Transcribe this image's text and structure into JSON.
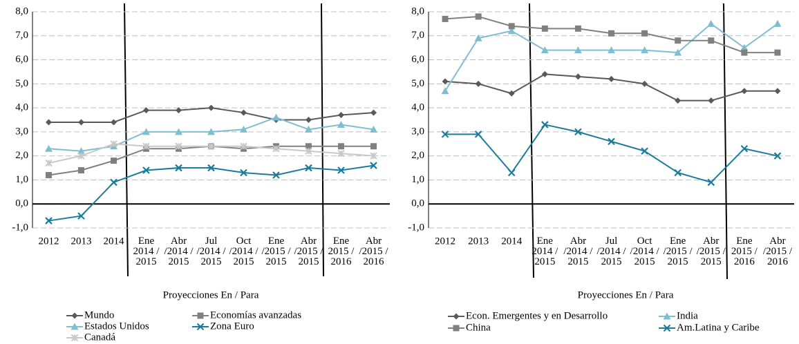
{
  "chart_data": [
    {
      "type": "line",
      "xlabel": "Proyecciones En / Para",
      "categories": [
        "2012",
        "2013",
        "2014",
        "Ene\n2014 /\n2015",
        "Abr\n/2014 /\n2015",
        "Jul\n/2014 /\n2015",
        "Oct\n/2014 /\n2015",
        "Ene\n/2015 /\n2015",
        "Abr\n/2015 /\n2015",
        "Ene\n2015 /\n2016",
        "Abr\n/2015 /\n2016"
      ],
      "ylim": [
        -1,
        8
      ],
      "yticks": [
        {
          "value": -1,
          "label": "-1,0"
        },
        {
          "value": 0,
          "label": "0,0"
        },
        {
          "value": 1,
          "label": "1,0"
        },
        {
          "value": 2,
          "label": "2,0"
        },
        {
          "value": 3,
          "label": "3,0"
        },
        {
          "value": 4,
          "label": "4,0"
        },
        {
          "value": 5,
          "label": "5,0"
        },
        {
          "value": 6,
          "label": "6,0"
        },
        {
          "value": 7,
          "label": "7,0"
        },
        {
          "value": 8,
          "label": "8,0"
        }
      ],
      "grid": true,
      "series": [
        {
          "name": "Mundo",
          "color": "#595959",
          "marker": "diamond",
          "values": [
            3.4,
            3.4,
            3.4,
            3.9,
            3.9,
            4.0,
            3.8,
            3.5,
            3.5,
            3.7,
            3.8
          ]
        },
        {
          "name": "Economías avanzadas",
          "color": "#808080",
          "marker": "square",
          "values": [
            1.2,
            1.4,
            1.8,
            2.3,
            2.3,
            2.4,
            2.3,
            2.4,
            2.4,
            2.4,
            2.4
          ]
        },
        {
          "name": "Estados Unidos",
          "color": "#7fbdd2",
          "marker": "triangle",
          "values": [
            2.3,
            2.2,
            2.4,
            3.0,
            3.0,
            3.0,
            3.1,
            3.6,
            3.1,
            3.3,
            3.1
          ]
        },
        {
          "name": "Zona Euro",
          "color": "#1a7c9c",
          "marker": "x",
          "values": [
            -0.7,
            -0.5,
            0.9,
            1.4,
            1.5,
            1.5,
            1.3,
            1.2,
            1.5,
            1.4,
            1.6
          ]
        },
        {
          "name": "Canadá",
          "color": "#c8c8c8",
          "marker": "star",
          "values": [
            1.7,
            2.0,
            2.5,
            2.4,
            2.4,
            2.4,
            2.4,
            2.3,
            2.2,
            2.1,
            2.0
          ]
        }
      ]
    },
    {
      "type": "line",
      "xlabel": "Proyecciones En / Para",
      "categories": [
        "2012",
        "2013",
        "2014",
        "Ene\n2014 /\n2015",
        "Abr\n/2014 /\n2015",
        "Jul\n/2014 /\n2015",
        "Oct\n/2014 /\n2015",
        "Ene\n/2015 /\n2015",
        "Abr\n/2015 /\n2015",
        "Ene\n2015 /\n2016",
        "Abr\n/2015 /\n2016"
      ],
      "ylim": [
        -1,
        8
      ],
      "yticks": [
        {
          "value": -1,
          "label": "-1,0"
        },
        {
          "value": 0,
          "label": "0,0"
        },
        {
          "value": 1,
          "label": "1,0"
        },
        {
          "value": 2,
          "label": "2,0"
        },
        {
          "value": 3,
          "label": "3,0"
        },
        {
          "value": 4,
          "label": "4,0"
        },
        {
          "value": 5,
          "label": "5,0"
        },
        {
          "value": 6,
          "label": "6,0"
        },
        {
          "value": 7,
          "label": "7,0"
        },
        {
          "value": 8,
          "label": "8,0"
        }
      ],
      "grid": true,
      "series": [
        {
          "name": "Econ. Emergentes y en Desarrollo",
          "color": "#595959",
          "marker": "diamond",
          "values": [
            5.1,
            5.0,
            4.6,
            5.4,
            5.3,
            5.2,
            5.0,
            4.3,
            4.3,
            4.7,
            4.7
          ]
        },
        {
          "name": "India",
          "color": "#7fbdd2",
          "marker": "triangle",
          "values": [
            4.7,
            6.9,
            7.2,
            6.4,
            6.4,
            6.4,
            6.4,
            6.3,
            7.5,
            6.5,
            7.5
          ]
        },
        {
          "name": "China",
          "color": "#808080",
          "marker": "square",
          "values": [
            7.7,
            7.8,
            7.4,
            7.3,
            7.3,
            7.1,
            7.1,
            6.8,
            6.8,
            6.3,
            6.3
          ]
        },
        {
          "name": "Am.Latina y Caribe",
          "color": "#1a7c9c",
          "marker": "x",
          "values": [
            2.9,
            2.9,
            1.3,
            3.3,
            3.0,
            2.6,
            2.2,
            1.3,
            0.9,
            2.3,
            2.0
          ]
        }
      ]
    }
  ]
}
